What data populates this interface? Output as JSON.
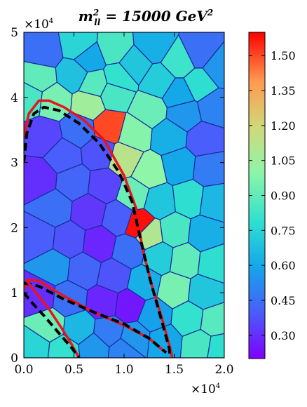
{
  "chart_data": {
    "type": "heatmap",
    "subtype": "voronoi-tessellation",
    "title": "m_{ll}^{2} = 15000 GeV^{2}",
    "title_parts": {
      "main": "m",
      "sup": "2",
      "sub": "ll",
      "rest": " = 15000 ",
      "unit": "GeV",
      "unit_sup": "2"
    },
    "xlabel": "",
    "ylabel": "",
    "x_range": [
      0,
      20000
    ],
    "y_range": [
      0,
      50000
    ],
    "x_ticks": [
      "0.0",
      "0.5",
      "1.0",
      "1.5",
      "2.0"
    ],
    "y_ticks": [
      "0",
      "1",
      "2",
      "3",
      "4",
      "5"
    ],
    "x_multiplier": "×10^4",
    "y_multiplier": "×10^4",
    "multiplier_parts": {
      "base": "×10",
      "exp": "4"
    },
    "colormap": "rainbow",
    "color_range": [
      0.2,
      1.6
    ],
    "colorbar_ticks": [
      "0.30",
      "0.45",
      "0.60",
      "0.75",
      "0.90",
      "1.05",
      "1.20",
      "1.35",
      "1.50"
    ],
    "colorbar_tick_values": [
      0.3,
      0.45,
      0.6,
      0.75,
      0.9,
      1.05,
      1.2,
      1.35,
      1.5
    ],
    "cells": [
      {
        "x": 2000,
        "y": 47000,
        "v": 0.45
      },
      {
        "x": 5500,
        "y": 48000,
        "v": 0.75
      },
      {
        "x": 9000,
        "y": 47500,
        "v": 0.85
      },
      {
        "x": 13000,
        "y": 48000,
        "v": 0.62
      },
      {
        "x": 17500,
        "y": 47000,
        "v": 0.45
      },
      {
        "x": 1500,
        "y": 43000,
        "v": 0.9
      },
      {
        "x": 5000,
        "y": 43500,
        "v": 0.68
      },
      {
        "x": 9500,
        "y": 43000,
        "v": 0.8
      },
      {
        "x": 13500,
        "y": 42500,
        "v": 0.72
      },
      {
        "x": 17500,
        "y": 42000,
        "v": 0.78
      },
      {
        "x": 3000,
        "y": 39500,
        "v": 0.95
      },
      {
        "x": 6500,
        "y": 39000,
        "v": 1.05
      },
      {
        "x": 9000,
        "y": 40500,
        "v": 0.85
      },
      {
        "x": 12500,
        "y": 38000,
        "v": 0.92
      },
      {
        "x": 16000,
        "y": 37500,
        "v": 0.55
      },
      {
        "x": 19000,
        "y": 38500,
        "v": 0.5
      },
      {
        "x": 5500,
        "y": 35000,
        "v": 0.45
      },
      {
        "x": 8500,
        "y": 35500,
        "v": 1.5
      },
      {
        "x": 11000,
        "y": 34500,
        "v": 0.98
      },
      {
        "x": 14500,
        "y": 34000,
        "v": 0.62
      },
      {
        "x": 18000,
        "y": 33500,
        "v": 0.4
      },
      {
        "x": 2000,
        "y": 34000,
        "v": 0.35
      },
      {
        "x": 4000,
        "y": 31000,
        "v": 0.4
      },
      {
        "x": 7500,
        "y": 31500,
        "v": 0.38
      },
      {
        "x": 10000,
        "y": 30500,
        "v": 1.12
      },
      {
        "x": 12500,
        "y": 28500,
        "v": 1.0
      },
      {
        "x": 15500,
        "y": 29500,
        "v": 0.6
      },
      {
        "x": 18500,
        "y": 29000,
        "v": 0.48
      },
      {
        "x": 1500,
        "y": 27500,
        "v": 0.3
      },
      {
        "x": 5000,
        "y": 27000,
        "v": 0.42
      },
      {
        "x": 8000,
        "y": 26500,
        "v": 0.35
      },
      {
        "x": 11000,
        "y": 25000,
        "v": 0.92
      },
      {
        "x": 13500,
        "y": 24000,
        "v": 0.7
      },
      {
        "x": 16500,
        "y": 24500,
        "v": 0.78
      },
      {
        "x": 19000,
        "y": 24000,
        "v": 0.65
      },
      {
        "x": 3000,
        "y": 23000,
        "v": 0.45
      },
      {
        "x": 6500,
        "y": 22500,
        "v": 0.32
      },
      {
        "x": 9500,
        "y": 21500,
        "v": 0.4
      },
      {
        "x": 11500,
        "y": 20500,
        "v": 1.58
      },
      {
        "x": 12500,
        "y": 19000,
        "v": 1.1
      },
      {
        "x": 15000,
        "y": 19500,
        "v": 0.85
      },
      {
        "x": 18000,
        "y": 19000,
        "v": 0.62
      },
      {
        "x": 1500,
        "y": 18500,
        "v": 0.4
      },
      {
        "x": 4500,
        "y": 18000,
        "v": 0.38
      },
      {
        "x": 7500,
        "y": 17500,
        "v": 0.28
      },
      {
        "x": 10500,
        "y": 16500,
        "v": 0.45
      },
      {
        "x": 13500,
        "y": 15500,
        "v": 0.72
      },
      {
        "x": 16000,
        "y": 15000,
        "v": 0.9
      },
      {
        "x": 19000,
        "y": 14500,
        "v": 0.78
      },
      {
        "x": 3000,
        "y": 14000,
        "v": 0.55
      },
      {
        "x": 6000,
        "y": 13500,
        "v": 0.42
      },
      {
        "x": 9000,
        "y": 12500,
        "v": 0.38
      },
      {
        "x": 12000,
        "y": 11500,
        "v": 0.62
      },
      {
        "x": 15000,
        "y": 10500,
        "v": 0.95
      },
      {
        "x": 18000,
        "y": 10000,
        "v": 0.7
      },
      {
        "x": 1500,
        "y": 9500,
        "v": 0.3
      },
      {
        "x": 4500,
        "y": 9000,
        "v": 0.45
      },
      {
        "x": 8000,
        "y": 8500,
        "v": 0.28
      },
      {
        "x": 10500,
        "y": 8000,
        "v": 0.25
      },
      {
        "x": 13000,
        "y": 6500,
        "v": 0.58
      },
      {
        "x": 16500,
        "y": 6000,
        "v": 0.8
      },
      {
        "x": 19000,
        "y": 5500,
        "v": 0.88
      },
      {
        "x": 2500,
        "y": 5000,
        "v": 0.92
      },
      {
        "x": 5500,
        "y": 4500,
        "v": 0.65
      },
      {
        "x": 8500,
        "y": 4000,
        "v": 0.48
      },
      {
        "x": 11000,
        "y": 3000,
        "v": 0.55
      },
      {
        "x": 14000,
        "y": 2500,
        "v": 0.6
      },
      {
        "x": 17500,
        "y": 2000,
        "v": 0.85
      },
      {
        "x": 1000,
        "y": 1500,
        "v": 0.75
      },
      {
        "x": 4000,
        "y": 1000,
        "v": 0.8
      },
      {
        "x": 7000,
        "y": 1500,
        "v": 0.55
      },
      {
        "x": 10000,
        "y": 1000,
        "v": 0.5
      },
      {
        "x": 19500,
        "y": 1500,
        "v": 0.78
      },
      {
        "x": 6500,
        "y": 46000,
        "v": 0.6
      },
      {
        "x": 11000,
        "y": 45000,
        "v": 0.7
      },
      {
        "x": 15500,
        "y": 45500,
        "v": 0.82
      },
      {
        "x": 500,
        "y": 40000,
        "v": 0.85
      },
      {
        "x": 19500,
        "y": 44500,
        "v": 0.55
      },
      {
        "x": 7000,
        "y": 42000,
        "v": 0.88
      },
      {
        "x": 15500,
        "y": 40500,
        "v": 0.6
      }
    ],
    "overlay_curves": [
      {
        "color": "red",
        "style": "solid",
        "points": [
          [
            0,
            34000
          ],
          [
            500,
            37500
          ],
          [
            1500,
            39500
          ],
          [
            2500,
            39500
          ],
          [
            4000,
            38500
          ],
          [
            6000,
            36500
          ],
          [
            8000,
            33500
          ],
          [
            10000,
            28000
          ],
          [
            11200,
            23000
          ],
          [
            11800,
            17000
          ],
          [
            12800,
            11000
          ],
          [
            13800,
            6000
          ],
          [
            14600,
            1500
          ],
          [
            14800,
            0
          ]
        ]
      },
      {
        "color": "black",
        "style": "dashed",
        "points": [
          [
            0,
            30000
          ],
          [
            300,
            34500
          ],
          [
            1000,
            37500
          ],
          [
            2000,
            38500
          ],
          [
            3500,
            38000
          ],
          [
            5500,
            36000
          ],
          [
            7500,
            33000
          ],
          [
            9500,
            28500
          ],
          [
            10800,
            24000
          ],
          [
            11600,
            18500
          ],
          [
            12600,
            12000
          ],
          [
            13700,
            6000
          ],
          [
            14500,
            1500
          ],
          [
            14600,
            0
          ]
        ]
      },
      {
        "color": "red",
        "style": "solid",
        "points": [
          [
            0,
            10500
          ],
          [
            500,
            12000
          ],
          [
            1500,
            11800
          ],
          [
            4000,
            9500
          ],
          [
            7000,
            7000
          ],
          [
            10000,
            5000
          ],
          [
            12500,
            3000
          ],
          [
            14000,
            1000
          ]
        ]
      },
      {
        "color": "black",
        "style": "dashed",
        "points": [
          [
            0,
            11500
          ],
          [
            1500,
            11000
          ],
          [
            4000,
            9000
          ],
          [
            7000,
            7000
          ],
          [
            10000,
            5200
          ],
          [
            12500,
            3000
          ],
          [
            14200,
            800
          ]
        ]
      },
      {
        "color": "red",
        "style": "solid",
        "points": [
          [
            200,
            12000
          ],
          [
            1200,
            10000
          ],
          [
            2500,
            7500
          ],
          [
            3800,
            4500
          ],
          [
            4800,
            2000
          ],
          [
            5500,
            0
          ]
        ]
      },
      {
        "color": "black",
        "style": "dashed",
        "points": [
          [
            0,
            10000
          ],
          [
            800,
            8500
          ],
          [
            2000,
            6500
          ],
          [
            3500,
            3800
          ],
          [
            4800,
            1500
          ],
          [
            5500,
            0
          ]
        ]
      }
    ]
  }
}
